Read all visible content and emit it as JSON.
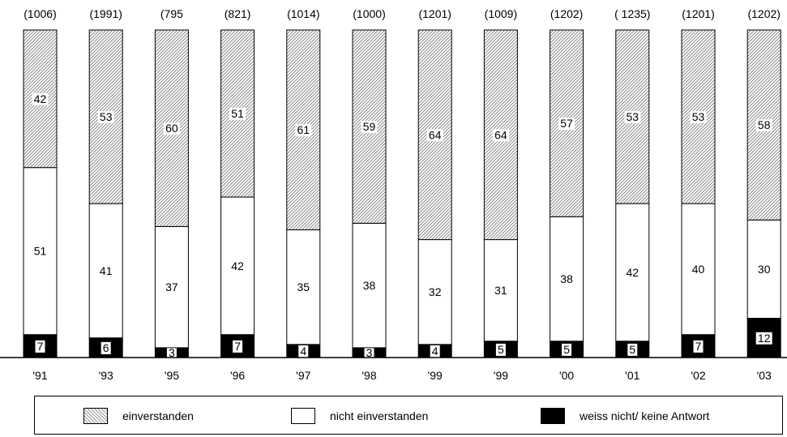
{
  "chart_data": {
    "type": "bar",
    "stacked": true,
    "categories": [
      "'91",
      "'93",
      "'95",
      "'96",
      "'97",
      "'98",
      "'99",
      "'99",
      "'00",
      "'01",
      "'02",
      "'03"
    ],
    "sample_sizes": [
      "(1006)",
      "(1991)",
      "(795",
      "(821)",
      "(1014)",
      "(1000)",
      "(1201)",
      "(1009)",
      "(1202)",
      "( 1235)",
      "(1201)",
      "(1202)"
    ],
    "series": [
      {
        "name": "weiss nicht/ keine Antwort",
        "color": "#000000",
        "values": [
          7,
          6,
          3,
          7,
          4,
          3,
          4,
          5,
          5,
          5,
          7,
          12
        ]
      },
      {
        "name": "nicht einverstanden",
        "color": "#ffffff",
        "values": [
          51,
          41,
          37,
          42,
          35,
          38,
          32,
          31,
          38,
          42,
          40,
          30
        ]
      },
      {
        "name": "einverstanden",
        "color": "#c8c8c8",
        "values": [
          42,
          53,
          60,
          51,
          61,
          59,
          64,
          64,
          57,
          53,
          53,
          58
        ]
      }
    ],
    "ylim": [
      0,
      100
    ],
    "legend_position": "bottom"
  },
  "legend": {
    "items": [
      {
        "label": "einverstanden",
        "icon": "hatched-swatch"
      },
      {
        "label": "nicht einverstanden",
        "icon": "white-swatch"
      },
      {
        "label": "weiss nicht/ keine Antwort",
        "icon": "black-swatch"
      }
    ]
  }
}
